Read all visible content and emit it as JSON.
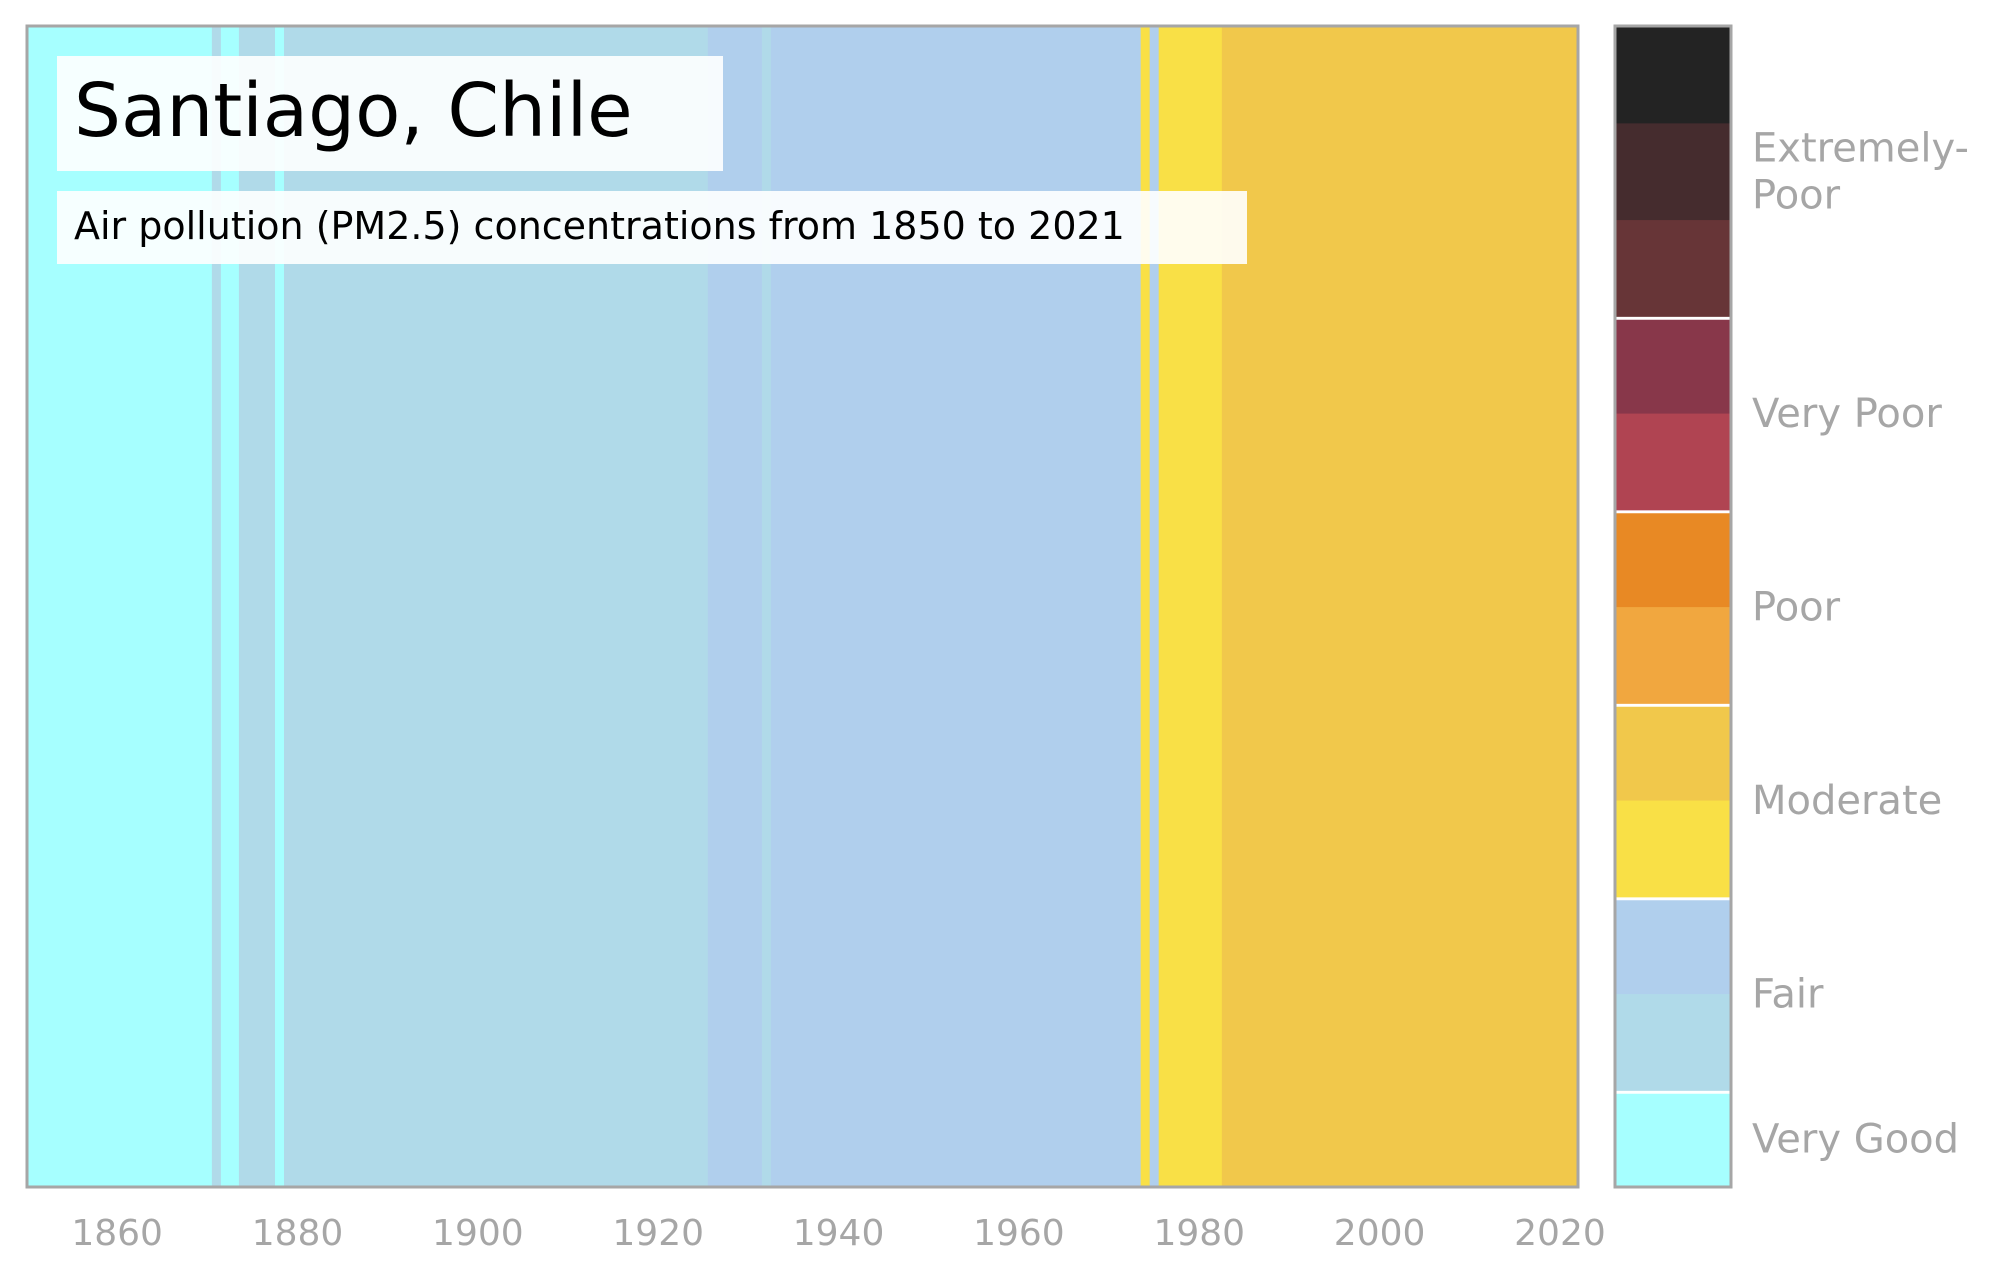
{
  "chart_data": {
    "type": "heatmap",
    "title": "Santiago, Chile",
    "subtitle": "Air pollution (PM2.5) concentrations from 1850 to 2021",
    "x_range": [
      1850,
      2022
    ],
    "x_ticks": [
      1860,
      1880,
      1900,
      1920,
      1940,
      1960,
      1980,
      2000,
      2020
    ],
    "year_bands": [
      {
        "start": 1850,
        "end": 1870.5,
        "category": "Very Good",
        "color": "#a6ffff"
      },
      {
        "start": 1870.5,
        "end": 1871.5,
        "category": "Fair",
        "color": "#b0dae9"
      },
      {
        "start": 1871.5,
        "end": 1873.5,
        "category": "Very Good",
        "color": "#a6ffff"
      },
      {
        "start": 1873.5,
        "end": 1877.5,
        "category": "Fair",
        "color": "#b0dae9"
      },
      {
        "start": 1877.5,
        "end": 1878.5,
        "category": "Very Good",
        "color": "#a6ffff"
      },
      {
        "start": 1878.5,
        "end": 1925.5,
        "category": "Fair",
        "color": "#b0dae9"
      },
      {
        "start": 1925.5,
        "end": 1931.5,
        "category": "Fair",
        "color": "#b0cfed"
      },
      {
        "start": 1931.5,
        "end": 1932.5,
        "category": "Fair",
        "color": "#b0dae9"
      },
      {
        "start": 1932.5,
        "end": 1973.5,
        "category": "Fair",
        "color": "#b0cfed"
      },
      {
        "start": 1973.5,
        "end": 1974.5,
        "category": "Moderate",
        "color": "#f9e046"
      },
      {
        "start": 1974.5,
        "end": 1975.5,
        "category": "Fair",
        "color": "#b0cfed"
      },
      {
        "start": 1975.5,
        "end": 1982.5,
        "category": "Moderate",
        "color": "#f9e046"
      },
      {
        "start": 1982.5,
        "end": 2022,
        "category": "Moderate",
        "color": "#f1c84b"
      }
    ],
    "legend": {
      "position": "right",
      "categories": [
        {
          "label": "Very Good",
          "colors": [
            "#a6ffff"
          ]
        },
        {
          "label": "Fair",
          "colors": [
            "#b0dae9",
            "#b0cfed"
          ]
        },
        {
          "label": "Moderate",
          "colors": [
            "#f9e046",
            "#f1c84b"
          ]
        },
        {
          "label": "Poor",
          "colors": [
            "#f1a73f",
            "#e88924"
          ]
        },
        {
          "label": "Very Poor",
          "colors": [
            "#b04452",
            "#88374a"
          ]
        },
        {
          "label": "Extremely-Poor",
          "label_lines": [
            "Extremely-",
            "Poor"
          ],
          "colors": [
            "#673537",
            "#452c2e",
            "#232323"
          ]
        }
      ]
    },
    "grid": false
  },
  "colors": {
    "frame": "#a6a6a6",
    "separator": "#ffffff",
    "title_box": "#ffffff"
  }
}
